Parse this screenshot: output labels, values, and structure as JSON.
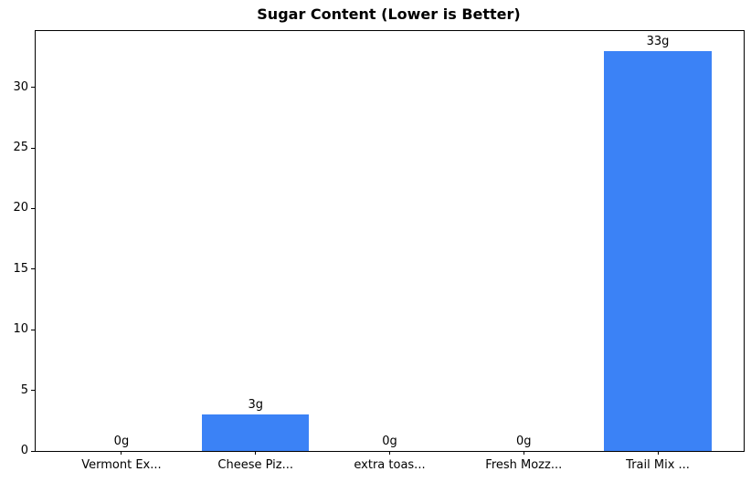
{
  "chart_data": {
    "type": "bar",
    "title": "Sugar Content (Lower is Better)",
    "categories": [
      "Vermont Ex...",
      "Cheese Piz...",
      "extra toas...",
      "Fresh Mozz...",
      "Trail Mix ..."
    ],
    "values": [
      0,
      3,
      0,
      0,
      33
    ],
    "value_labels": [
      "0g",
      "3g",
      "0g",
      "0g",
      "33g"
    ],
    "xlabel": "",
    "ylabel": "",
    "ylim": [
      0,
      34.65
    ],
    "xlim": [
      -0.64,
      4.64
    ],
    "yticks": [
      0,
      5,
      10,
      15,
      20,
      25,
      30
    ],
    "bar_width_units": 0.8,
    "grid": false,
    "legend": null,
    "bar_color": "#3b82f6",
    "axis_color": "#000000",
    "background_color": "#ffffff"
  }
}
